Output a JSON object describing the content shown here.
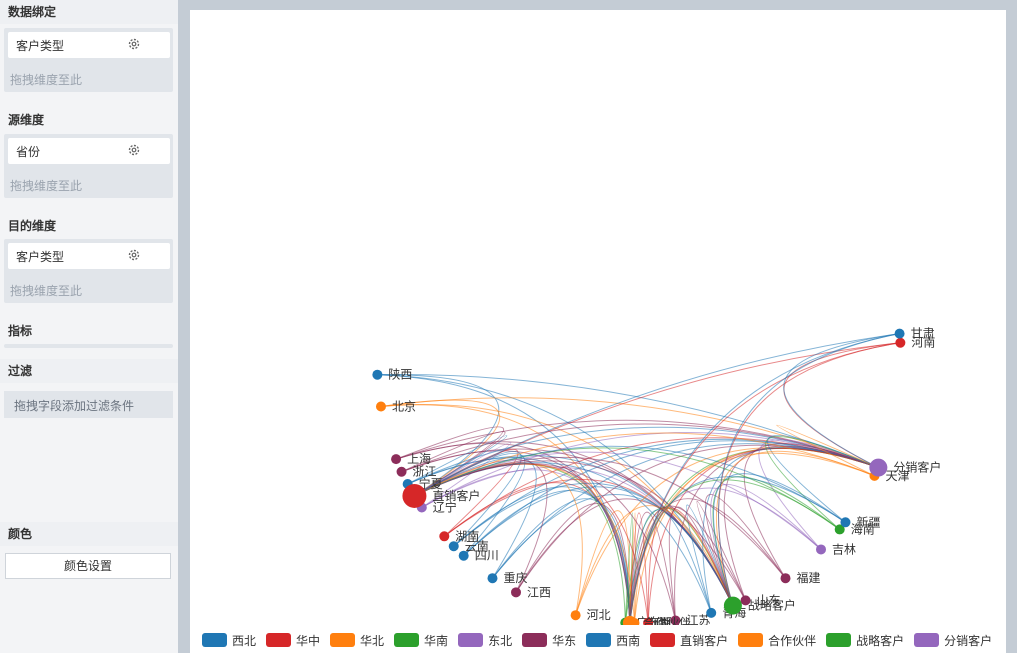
{
  "sidebar": {
    "binding": {
      "title": "数据绑定",
      "field": "客户类型",
      "drop": "拖拽维度至此"
    },
    "source": {
      "title": "源维度",
      "field": "省份",
      "drop": "拖拽维度至此"
    },
    "target": {
      "title": "目的维度",
      "field": "客户类型",
      "drop": "拖拽维度至此"
    },
    "metric": {
      "title": "指标"
    },
    "filter": {
      "title": "过滤",
      "drop": "拖拽字段添加过滤条件"
    },
    "color": {
      "title": "颜色",
      "button": "颜色设置"
    }
  },
  "colors": {
    "西北": "#1f77b4",
    "华中": "#d62728",
    "华北": "#ff7f0e",
    "华南": "#2ca02c",
    "东北": "#9467bd",
    "华东": "#8c2d5a",
    "西南": "#1f77b4",
    "直销客户": "#d62728",
    "合作伙伴": "#ff7f0e",
    "战略客户": "#2ca02c",
    "分销客户": "#9467bd"
  },
  "chart_data": {
    "type": "chord",
    "legend": [
      "西北",
      "华中",
      "华北",
      "华南",
      "东北",
      "华东",
      "西南",
      "直销客户",
      "合作伙伴",
      "战略客户",
      "分销客户"
    ],
    "targets": [
      {
        "name": "合作伙伴",
        "group": "合作伙伴"
      },
      {
        "name": "战略客户",
        "group": "战略客户"
      },
      {
        "name": "直销客户",
        "group": "直销客户"
      },
      {
        "name": "分销客户",
        "group": "分销客户"
      }
    ],
    "sources": [
      {
        "name": "陕西",
        "group": "西北"
      },
      {
        "name": "北京",
        "group": "华北"
      },
      {
        "name": "上海",
        "group": "华东"
      },
      {
        "name": "浙江",
        "group": "华东"
      },
      {
        "name": "宁夏",
        "group": "西北"
      },
      {
        "name": "辽宁",
        "group": "东北"
      },
      {
        "name": "湖南",
        "group": "华中"
      },
      {
        "name": "云南",
        "group": "西南"
      },
      {
        "name": "四川",
        "group": "西南"
      },
      {
        "name": "重庆",
        "group": "西南"
      },
      {
        "name": "江西",
        "group": "华东"
      },
      {
        "name": "河北",
        "group": "华北"
      },
      {
        "name": "广东",
        "group": "华南"
      },
      {
        "name": "山西",
        "group": "华北"
      },
      {
        "name": "湖北",
        "group": "华中"
      },
      {
        "name": "江苏",
        "group": "华东"
      },
      {
        "name": "青海",
        "group": "西北"
      },
      {
        "name": "山东",
        "group": "华东"
      },
      {
        "name": "福建",
        "group": "华东"
      },
      {
        "name": "吉林",
        "group": "东北"
      },
      {
        "name": "海南",
        "group": "华南"
      },
      {
        "name": "新疆",
        "group": "西北"
      },
      {
        "name": "天津",
        "group": "华北"
      },
      {
        "name": "河南",
        "group": "华中"
      },
      {
        "name": "甘肃",
        "group": "西北"
      }
    ]
  }
}
